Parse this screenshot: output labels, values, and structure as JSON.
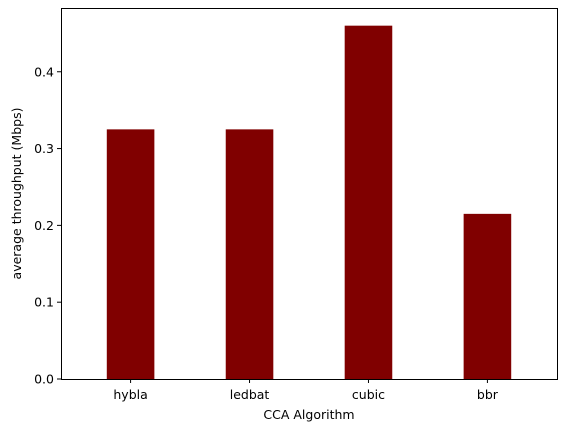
{
  "chart_data": {
    "type": "bar",
    "categories": [
      "hybla",
      "ledbat",
      "cubic",
      "bbr"
    ],
    "values": [
      0.325,
      0.325,
      0.46,
      0.215
    ],
    "xlabel": "CCA Algorithm",
    "ylabel": "average throughput (Mbps)",
    "ylim": [
      0,
      0.483
    ],
    "yticks": [
      0.0,
      0.1,
      0.2,
      0.3,
      0.4
    ],
    "ytick_labels": [
      "0.0",
      "0.1",
      "0.2",
      "0.3",
      "0.4"
    ],
    "bar_color": "#800000",
    "grid": false,
    "legend": "none"
  }
}
